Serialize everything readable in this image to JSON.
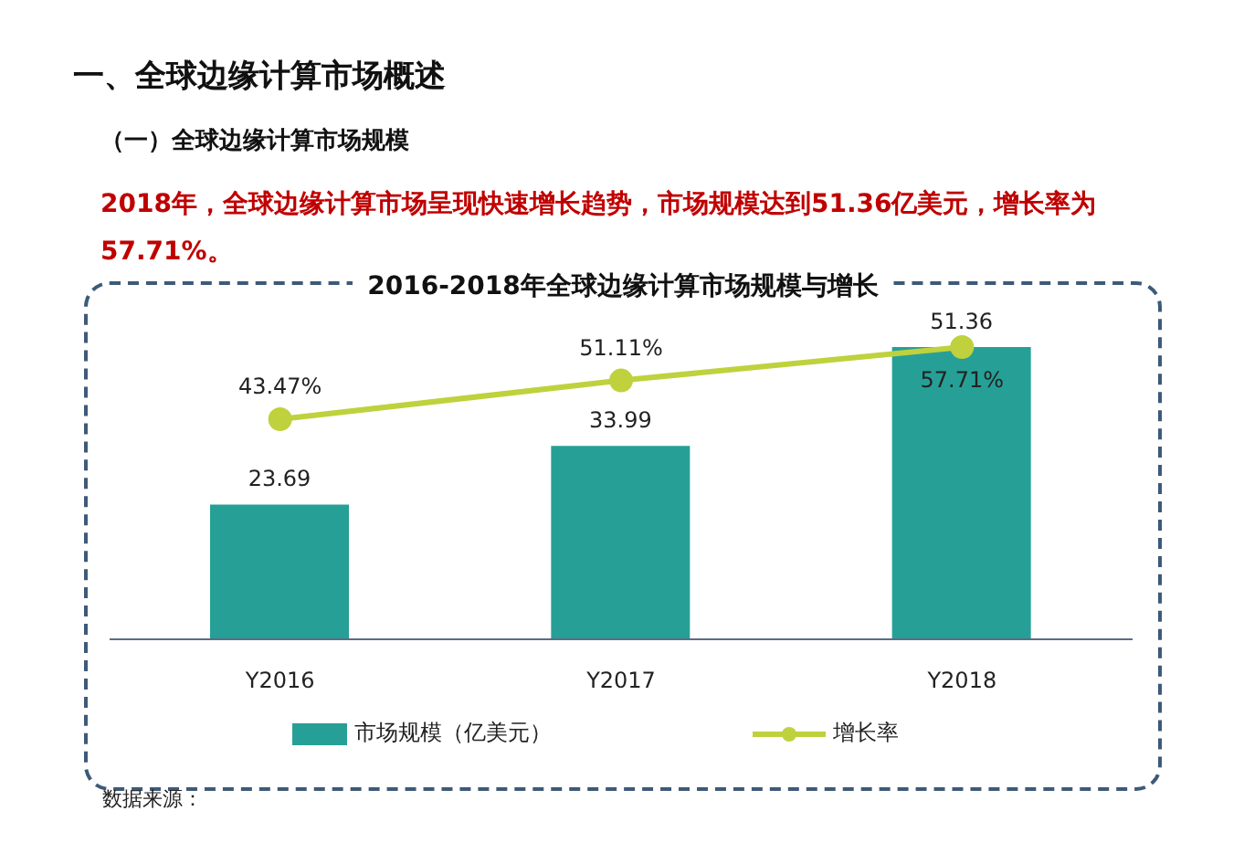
{
  "chart_data": {
    "type": "bar",
    "title": "2016-2018年全球边缘计算市场规模与增长",
    "annotations": [
      "一、全球边缘计算市场概述",
      "（一）全球边缘计算市场规模",
      "2018年，全球边缘计算市场呈现快速增长趋势，市场规模达到51.36亿美元，增长率为57.71%。",
      "数据来源："
    ],
    "categories": [
      "Y2016",
      "Y2017",
      "Y2018"
    ],
    "series": [
      {
        "name": "市场规模（亿美元）",
        "color": "#26a096",
        "values": [
          23.69,
          33.99,
          51.36
        ]
      },
      {
        "name": "增长率",
        "type": "line",
        "axis": "y2",
        "color": "#bfd13d",
        "marker": "circle",
        "values": [
          43.47,
          51.11,
          57.71
        ],
        "value_labels": [
          "43.47%",
          "51.11%",
          "57.71%"
        ]
      }
    ],
    "data_labels": true,
    "legend": "bottom"
  }
}
